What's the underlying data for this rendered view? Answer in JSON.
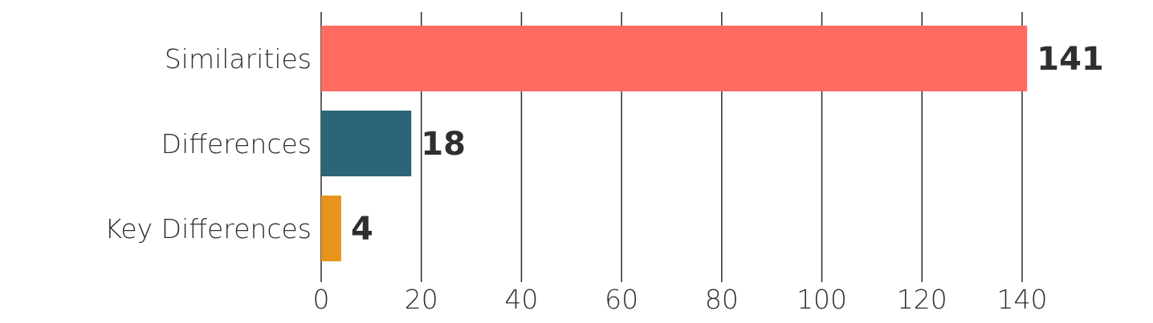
{
  "chart_data": {
    "type": "bar",
    "orientation": "horizontal",
    "categories": [
      "Similarities",
      "Differences",
      "Key Differences"
    ],
    "values": [
      141,
      18,
      4
    ],
    "colors": [
      "#ff6b61",
      "#2a6677",
      "#e8941a"
    ],
    "value_labels": [
      "141",
      "18",
      "4"
    ],
    "x_ticks": [
      0,
      20,
      40,
      60,
      80,
      100,
      120,
      140
    ],
    "x_tick_labels": [
      "0",
      "20",
      "40",
      "60",
      "80",
      "100",
      "120",
      "140"
    ],
    "xlim": [
      0,
      140
    ],
    "grid": "vertical",
    "legend": "none"
  }
}
